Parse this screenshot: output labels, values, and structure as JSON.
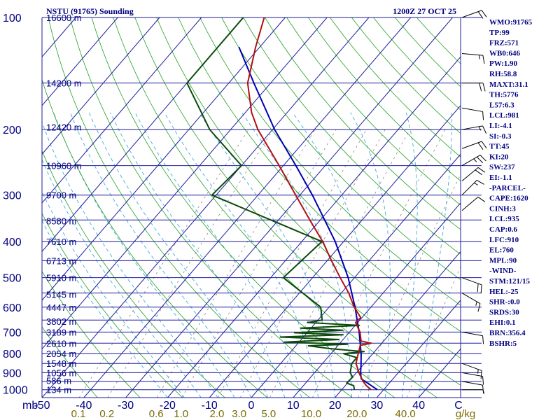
{
  "header": {
    "station": "NSTU (91765) Sounding",
    "valid": "1200Z 27 OCT 25"
  },
  "colors": {
    "isobar": "#1c1c9c",
    "isotherm": "#1c1c9c",
    "dry_adiabat": "#22a022",
    "moist_adiabat": "#44aadd",
    "mixing_ratio": "#888888",
    "temperature": "#b01010",
    "dewpoint": "#0b4a0b",
    "parcel": "#0000b0",
    "label": "#000080",
    "mixing_label": "#7a6a00"
  },
  "indices": [
    "WMO:91765",
    "TP:99",
    "FRZ:571",
    "WB0:646",
    "PW:1.90",
    "RH:58.8",
    "MAXT:31.1",
    "TH:5776",
    "L57:6.3",
    "LCL:981",
    "LI:-4.1",
    "SI:-0.3",
    "TT:45",
    "KI:20",
    "SW:237",
    "EI:-1.1",
    "-PARCEL-",
    "CAPE:1620",
    "CINH:3",
    "LCL:935",
    "CAP:0.6",
    "LFC:910",
    "EL:760",
    "MPL:90",
    "-WIND-",
    "STM:121/15",
    "HEL:-25",
    "SHR-:0.0",
    "SRDS:30",
    "EHI:0.1",
    "BRN:356.4",
    "BSHR:5"
  ],
  "chart_data": {
    "type": "skew-t",
    "title": "NSTU (91765) Sounding",
    "xlabel": "C",
    "ylabel": "mb",
    "pressure_range": [
      1050,
      100
    ],
    "temperature_range": [
      -50,
      50
    ],
    "pressure_ticks": [
      100,
      200,
      300,
      400,
      500,
      600,
      700,
      800,
      900,
      1000
    ],
    "temperature_ticks": [
      "-50",
      "-40",
      "-30",
      "-20",
      "-10",
      "0",
      "10",
      "20",
      "30",
      "40"
    ],
    "height_labels": [
      {
        "p": 100,
        "label": "16600 m"
      },
      {
        "p": 150,
        "label": "14200 m"
      },
      {
        "p": 197,
        "label": "12420 m"
      },
      {
        "p": 250,
        "label": "10960 m"
      },
      {
        "p": 300,
        "label": "9700 m"
      },
      {
        "p": 352,
        "label": "8580 m"
      },
      {
        "p": 400,
        "label": "7610 m"
      },
      {
        "p": 450,
        "label": "6713 m"
      },
      {
        "p": 500,
        "label": "5910 m"
      },
      {
        "p": 554,
        "label": "5145 m"
      },
      {
        "p": 600,
        "label": "4447 m"
      },
      {
        "p": 655,
        "label": "3802 m"
      },
      {
        "p": 700,
        "label": "3189 m"
      },
      {
        "p": 750,
        "label": "2610 m"
      },
      {
        "p": 800,
        "label": "2054 m"
      },
      {
        "p": 850,
        "label": "1548 m"
      },
      {
        "p": 900,
        "label": "1056 m"
      },
      {
        "p": 945,
        "label": "586 m"
      },
      {
        "p": 1000,
        "label": "134 m"
      }
    ],
    "mixing_ratio_labels": [
      "0.1",
      "0.2",
      "0.6",
      "1.0",
      "2.0",
      "3.0",
      "5.0",
      "10.0",
      "20.0",
      "40.0",
      "g/kg"
    ],
    "mixing_ratio_values": [
      0.1,
      0.2,
      0.6,
      1.0,
      2.0,
      3.0,
      5.0,
      10.0,
      20.0,
      40.0
    ],
    "temperature_profile": [
      {
        "p": 1000,
        "t": 27.0
      },
      {
        "p": 975,
        "t": 25.0
      },
      {
        "p": 950,
        "t": 23.4
      },
      {
        "p": 925,
        "t": 22.0
      },
      {
        "p": 900,
        "t": 20.6
      },
      {
        "p": 850,
        "t": 18.0
      },
      {
        "p": 800,
        "t": 16.5
      },
      {
        "p": 760,
        "t": 15.3
      },
      {
        "p": 750,
        "t": 17.5
      },
      {
        "p": 740,
        "t": 14.6
      },
      {
        "p": 700,
        "t": 12.5
      },
      {
        "p": 660,
        "t": 9.5
      },
      {
        "p": 640,
        "t": 9.7
      },
      {
        "p": 600,
        "t": 6.0
      },
      {
        "p": 550,
        "t": 1.8
      },
      {
        "p": 500,
        "t": -3.4
      },
      {
        "p": 450,
        "t": -9.0
      },
      {
        "p": 400,
        "t": -15.0
      },
      {
        "p": 350,
        "t": -22.5
      },
      {
        "p": 300,
        "t": -31.0
      },
      {
        "p": 250,
        "t": -41.0
      },
      {
        "p": 200,
        "t": -53.5
      },
      {
        "p": 180,
        "t": -58.5
      },
      {
        "p": 150,
        "t": -65.5
      },
      {
        "p": 120,
        "t": -71.0
      },
      {
        "p": 100,
        "t": -75.0
      }
    ],
    "dewpoint_profile": [
      {
        "p": 1000,
        "t": 23.0
      },
      {
        "p": 975,
        "t": 22.0
      },
      {
        "p": 960,
        "t": 19.8
      },
      {
        "p": 925,
        "t": 20.0
      },
      {
        "p": 900,
        "t": 18.5
      },
      {
        "p": 850,
        "t": 17.0
      },
      {
        "p": 820,
        "t": 17.0
      },
      {
        "p": 800,
        "t": 13.0
      },
      {
        "p": 790,
        "t": 17.5
      },
      {
        "p": 775,
        "t": 8.5
      },
      {
        "p": 762,
        "t": 3.0
      },
      {
        "p": 755,
        "t": 12.0
      },
      {
        "p": 745,
        "t": -3.5
      },
      {
        "p": 733,
        "t": 9.0
      },
      {
        "p": 722,
        "t": -5.5
      },
      {
        "p": 712,
        "t": 9.0
      },
      {
        "p": 703,
        "t": -3.0
      },
      {
        "p": 692,
        "t": 8.0
      },
      {
        "p": 683,
        "t": -2.5
      },
      {
        "p": 672,
        "t": 11.0
      },
      {
        "p": 660,
        "t": -2.0
      },
      {
        "p": 650,
        "t": 1.0
      },
      {
        "p": 600,
        "t": -2.0
      },
      {
        "p": 500,
        "t": -17.0
      },
      {
        "p": 400,
        "t": -15.2
      },
      {
        "p": 300,
        "t": -51.0
      },
      {
        "p": 250,
        "t": -50.0
      },
      {
        "p": 200,
        "t": -65.0
      },
      {
        "p": 150,
        "t": -80.0
      },
      {
        "p": 100,
        "t": -80.0
      }
    ],
    "parcel_profile": [
      {
        "p": 1000,
        "t": 28.5
      },
      {
        "p": 935,
        "t": 22.4
      },
      {
        "p": 900,
        "t": 21.0
      },
      {
        "p": 850,
        "t": 19.2
      },
      {
        "p": 800,
        "t": 17.2
      },
      {
        "p": 700,
        "t": 12.3
      },
      {
        "p": 600,
        "t": 6.2
      },
      {
        "p": 500,
        "t": -1.5
      },
      {
        "p": 400,
        "t": -12.0
      },
      {
        "p": 300,
        "t": -27.0
      },
      {
        "p": 250,
        "t": -37.0
      },
      {
        "p": 200,
        "t": -49.5
      },
      {
        "p": 150,
        "t": -64.0
      },
      {
        "p": 120,
        "t": -75.0
      }
    ],
    "wind_profile": [
      {
        "p": 100,
        "dir": 70,
        "spd": 20
      },
      {
        "p": 125,
        "dir": 95,
        "spd": 15
      },
      {
        "p": 150,
        "dir": 90,
        "spd": 20
      },
      {
        "p": 175,
        "dir": 100,
        "spd": 10
      },
      {
        "p": 200,
        "dir": 80,
        "spd": 15
      },
      {
        "p": 225,
        "dir": 70,
        "spd": 20
      },
      {
        "p": 250,
        "dir": 60,
        "spd": 25
      },
      {
        "p": 275,
        "dir": 50,
        "spd": 20
      },
      {
        "p": 300,
        "dir": 45,
        "spd": 15
      },
      {
        "p": 330,
        "dir": 50,
        "spd": 10
      },
      {
        "p": 500,
        "dir": 110,
        "spd": 20
      },
      {
        "p": 550,
        "dir": 120,
        "spd": 15
      },
      {
        "p": 700,
        "dir": 100,
        "spd": 10
      },
      {
        "p": 850,
        "dir": 110,
        "spd": 15
      },
      {
        "p": 900,
        "dir": 100,
        "spd": 10
      },
      {
        "p": 950,
        "dir": 100,
        "spd": 10
      },
      {
        "p": 1000,
        "dir": 90,
        "spd": 5
      }
    ]
  }
}
